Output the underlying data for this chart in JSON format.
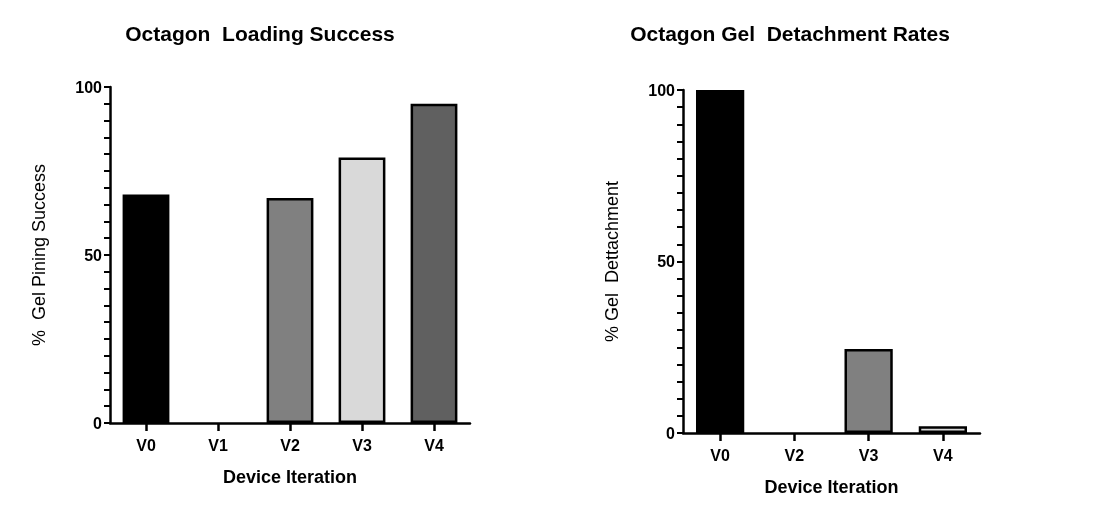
{
  "chart_data": [
    {
      "type": "bar",
      "title": "Octagon  Loading Success",
      "xlabel": "Device Iteration",
      "ylabel": "%  Gel Pining Success",
      "categories": [
        "V0",
        "V1",
        "V2",
        "V3",
        "V4"
      ],
      "values": [
        68,
        0,
        67,
        79,
        95
      ],
      "colors": [
        "#000000",
        "#ffffff",
        "#808080",
        "#d9d9d9",
        "#606060"
      ],
      "ylim": [
        0,
        100
      ],
      "yticks": [
        0,
        {
          "value": 5,
          "label": null
        },
        {
          "value": 10,
          "label": null
        },
        {
          "value": 15,
          "label": null
        },
        {
          "value": 20,
          "label": null
        },
        {
          "value": 25,
          "label": null
        },
        {
          "value": 30,
          "label": null
        },
        {
          "value": 35,
          "label": null
        },
        {
          "value": 40,
          "label": null
        },
        {
          "value": 45,
          "label": null
        },
        50,
        {
          "value": 55,
          "label": null
        },
        {
          "value": 60,
          "label": null
        },
        {
          "value": 65,
          "label": null
        },
        {
          "value": 70,
          "label": null
        },
        {
          "value": 75,
          "label": null
        },
        {
          "value": 80,
          "label": null
        },
        {
          "value": 85,
          "label": null
        },
        {
          "value": 90,
          "label": null
        },
        {
          "value": 95,
          "label": null
        },
        100
      ]
    },
    {
      "type": "bar",
      "title": "Octagon Gel  Detachment Rates",
      "xlabel": "Device Iteration",
      "ylabel": "% Gel  Dettachment",
      "categories": [
        "V0",
        "V2",
        "V3",
        "V4"
      ],
      "values": [
        100,
        0,
        24.5,
        2
      ],
      "colors": [
        "#000000",
        "#ffffff",
        "#808080",
        "#d9d9d9"
      ],
      "ylim": [
        0,
        100
      ],
      "yticks": [
        0,
        {
          "value": 5,
          "label": null
        },
        {
          "value": 10,
          "label": null
        },
        {
          "value": 15,
          "label": null
        },
        {
          "value": 20,
          "label": null
        },
        {
          "value": 25,
          "label": null
        },
        {
          "value": 30,
          "label": null
        },
        {
          "value": 35,
          "label": null
        },
        {
          "value": 40,
          "label": null
        },
        {
          "value": 45,
          "label": null
        },
        50,
        {
          "value": 55,
          "label": null
        },
        {
          "value": 60,
          "label": null
        },
        {
          "value": 65,
          "label": null
        },
        {
          "value": 70,
          "label": null
        },
        {
          "value": 75,
          "label": null
        },
        {
          "value": 80,
          "label": null
        },
        {
          "value": 85,
          "label": null
        },
        {
          "value": 90,
          "label": null
        },
        {
          "value": 95,
          "label": null
        },
        100
      ]
    }
  ]
}
